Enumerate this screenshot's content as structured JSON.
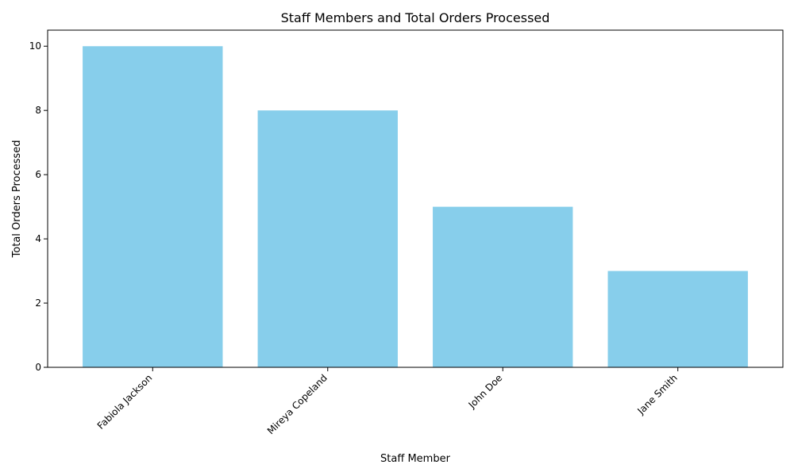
{
  "chart_data": {
    "type": "bar",
    "title": "Staff Members and Total Orders Processed",
    "xlabel": "Staff Member",
    "ylabel": "Total Orders Processed",
    "categories": [
      "Fabiola Jackson",
      "Mireya Copeland",
      "John Doe",
      "Jane Smith"
    ],
    "values": [
      10,
      8,
      5,
      3
    ],
    "ylim": [
      0,
      10.5
    ],
    "yticks": [
      0,
      2,
      4,
      6,
      8,
      10
    ],
    "bar_color": "#87CEEB",
    "grid": false,
    "legend": false
  }
}
